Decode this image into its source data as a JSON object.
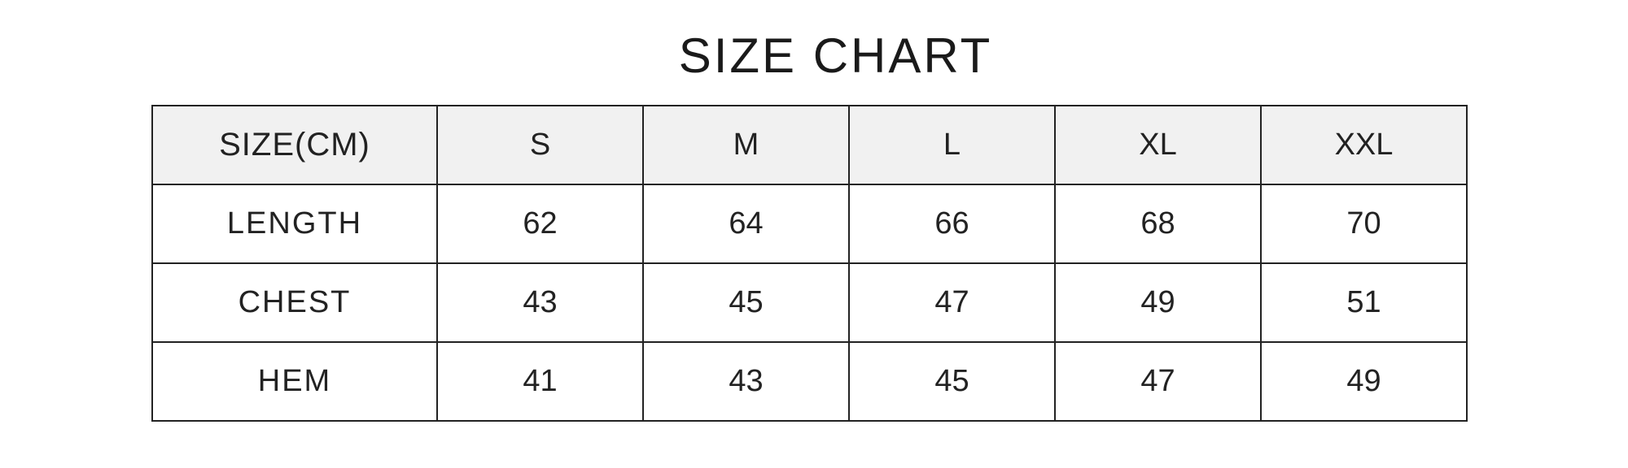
{
  "chart_data": {
    "type": "table",
    "title": "SIZE CHART",
    "corner_label": "SIZE(CM)",
    "columns": [
      "S",
      "M",
      "L",
      "XL",
      "XXL"
    ],
    "rows": [
      {
        "label": "LENGTH",
        "values": [
          "62",
          "64",
          "66",
          "68",
          "70"
        ]
      },
      {
        "label": "CHEST",
        "values": [
          "43",
          "45",
          "47",
          "49",
          "51"
        ]
      },
      {
        "label": "HEM",
        "values": [
          "41",
          "43",
          "45",
          "47",
          "49"
        ]
      }
    ]
  }
}
